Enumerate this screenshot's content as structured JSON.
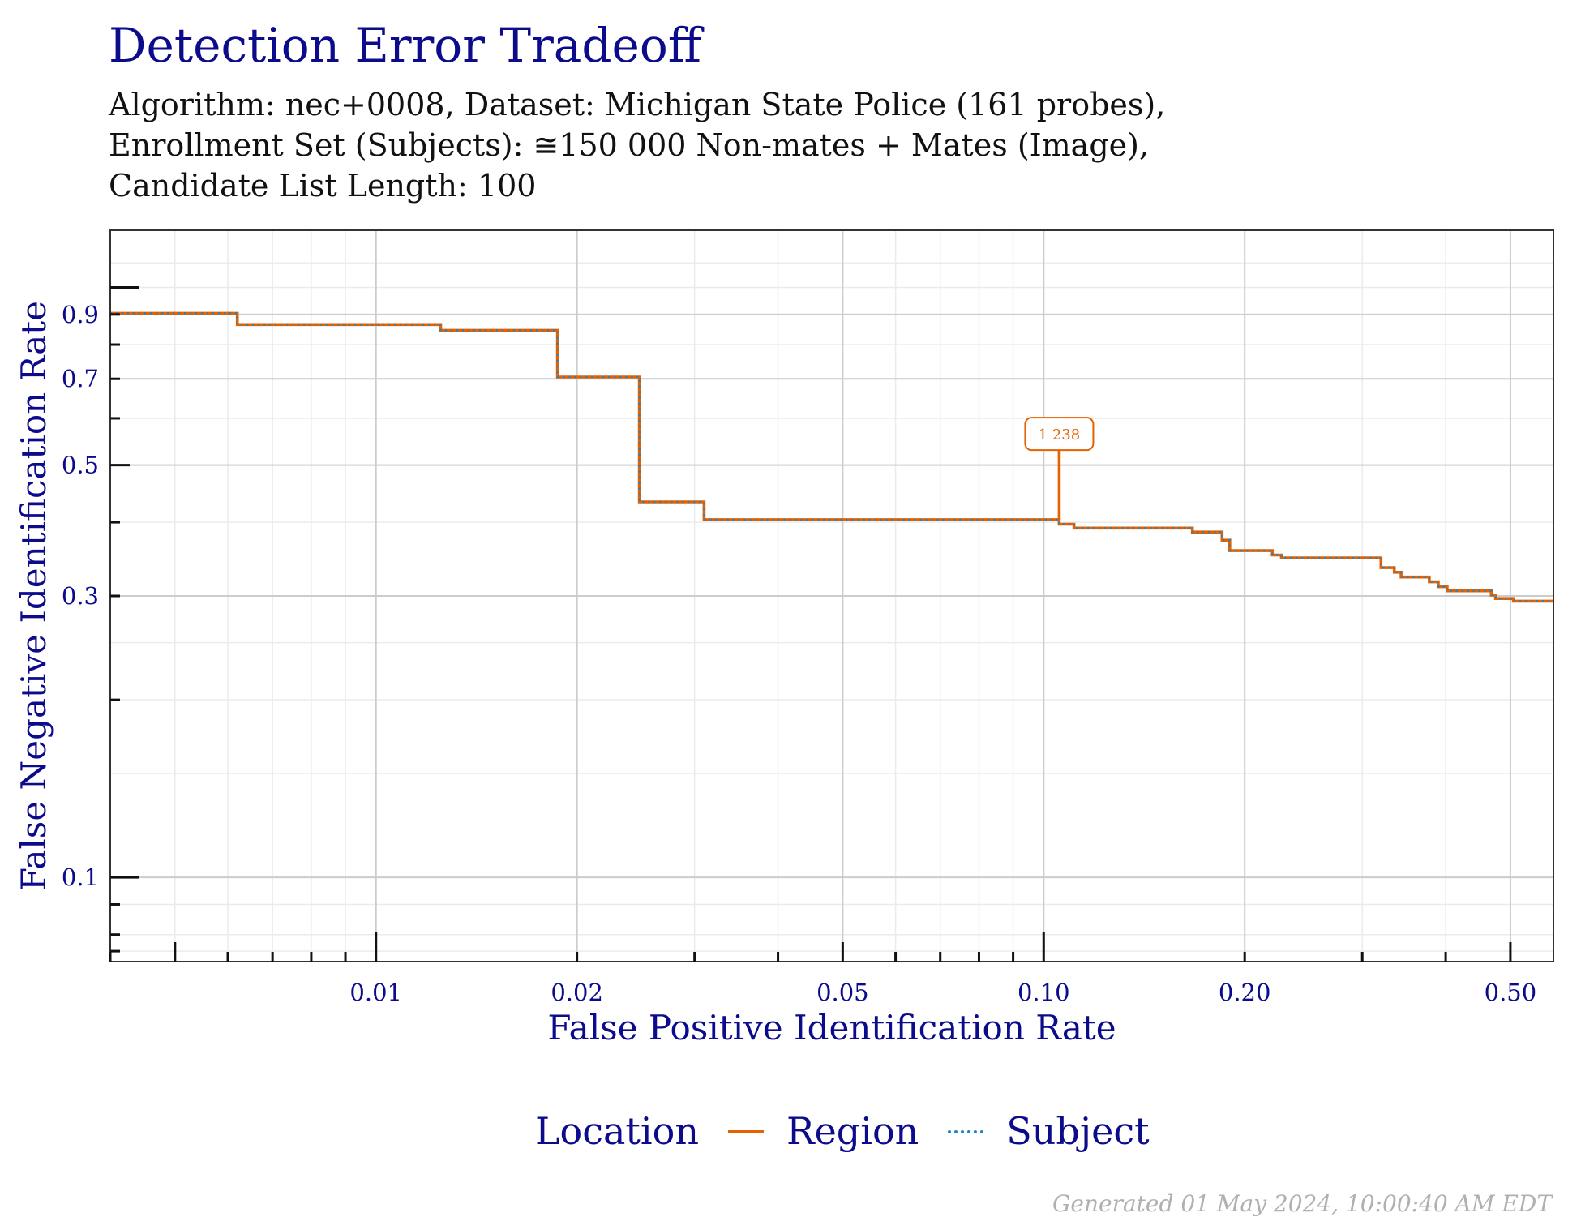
{
  "chart_data": {
    "type": "line",
    "title": "Detection Error Tradeoff",
    "subtitle": [
      "Algorithm: nec+0008, Dataset: Michigan State Police (161 probes),",
      "Enrollment Set (Subjects): ≅150 000 Non-mates + Mates (Image),",
      "Candidate List Length: 100"
    ],
    "xlabel": "False Positive Identification Rate",
    "ylabel": "False Negative Identification Rate",
    "x_scale": "log",
    "y_scale": "log",
    "xlim": [
      0.004,
      0.58
    ],
    "ylim": [
      0.072,
      1.25
    ],
    "x_ticks": [
      {
        "value": 0.01,
        "label": "0.01"
      },
      {
        "value": 0.02,
        "label": "0.02"
      },
      {
        "value": 0.05,
        "label": "0.05"
      },
      {
        "value": 0.1,
        "label": "0.10"
      },
      {
        "value": 0.2,
        "label": "0.20"
      },
      {
        "value": 0.5,
        "label": "0.50"
      }
    ],
    "y_ticks": [
      {
        "value": 0.1,
        "label": "0.1"
      },
      {
        "value": 0.3,
        "label": "0.3"
      },
      {
        "value": 0.5,
        "label": "0.5"
      },
      {
        "value": 0.7,
        "label": "0.7"
      },
      {
        "value": 0.9,
        "label": "0.9"
      }
    ],
    "grid": true,
    "legend": {
      "title": "Location",
      "position": "bottom"
    },
    "series": [
      {
        "name": "Region",
        "color": "#e66100",
        "style": "solid",
        "x": [
          0.004,
          0.0062,
          0.0062,
          0.0125,
          0.0125,
          0.0187,
          0.0187,
          0.0248,
          0.0248,
          0.031,
          0.031,
          0.1055,
          0.1055,
          0.111,
          0.111,
          0.167,
          0.167,
          0.185,
          0.185,
          0.19,
          0.19,
          0.22,
          0.22,
          0.227,
          0.227,
          0.32,
          0.32,
          0.335,
          0.335,
          0.343,
          0.343,
          0.378,
          0.378,
          0.39,
          0.39,
          0.402,
          0.402,
          0.468,
          0.468,
          0.475,
          0.475,
          0.505,
          0.505,
          0.58
        ],
        "y": [
          0.904,
          0.904,
          0.865,
          0.865,
          0.846,
          0.846,
          0.705,
          0.705,
          0.433,
          0.433,
          0.404,
          0.404,
          0.397,
          0.397,
          0.391,
          0.391,
          0.385,
          0.385,
          0.373,
          0.373,
          0.358,
          0.358,
          0.352,
          0.352,
          0.348,
          0.348,
          0.335,
          0.335,
          0.329,
          0.329,
          0.323,
          0.323,
          0.317,
          0.317,
          0.311,
          0.311,
          0.306,
          0.306,
          0.301,
          0.301,
          0.297,
          0.297,
          0.294,
          0.294
        ]
      },
      {
        "name": "Subject",
        "color": "#1a85c8",
        "style": "dotted",
        "x": [
          0.004,
          0.0062,
          0.0062,
          0.0125,
          0.0125,
          0.0187,
          0.0187,
          0.0248,
          0.0248,
          0.031,
          0.031,
          0.1055,
          0.1055,
          0.111,
          0.111,
          0.167,
          0.167,
          0.185,
          0.185,
          0.19,
          0.19,
          0.22,
          0.22,
          0.227,
          0.227,
          0.32,
          0.32,
          0.335,
          0.335,
          0.343,
          0.343,
          0.378,
          0.378,
          0.39,
          0.39,
          0.402,
          0.402,
          0.468,
          0.468,
          0.475,
          0.475,
          0.505,
          0.505,
          0.58
        ],
        "y": [
          0.904,
          0.904,
          0.865,
          0.865,
          0.846,
          0.846,
          0.705,
          0.705,
          0.433,
          0.433,
          0.404,
          0.404,
          0.397,
          0.397,
          0.391,
          0.391,
          0.385,
          0.385,
          0.373,
          0.373,
          0.358,
          0.358,
          0.352,
          0.352,
          0.348,
          0.348,
          0.335,
          0.335,
          0.329,
          0.329,
          0.323,
          0.323,
          0.317,
          0.317,
          0.311,
          0.311,
          0.306,
          0.306,
          0.301,
          0.301,
          0.297,
          0.297,
          0.294,
          0.294
        ]
      }
    ],
    "annotations": [
      {
        "series": "Region",
        "x": 0.1055,
        "y_from": 0.404,
        "y_to": 0.53,
        "label": "1 238"
      }
    ]
  },
  "legend_labels": {
    "title": "Location",
    "region": "Region",
    "subject": "Subject"
  },
  "footer": {
    "generated": "Generated 01 May 2024, 10:00:40 AM EDT"
  },
  "colors": {
    "title": "#0b0b8c",
    "region": "#e66100",
    "subject": "#1a85c8"
  }
}
